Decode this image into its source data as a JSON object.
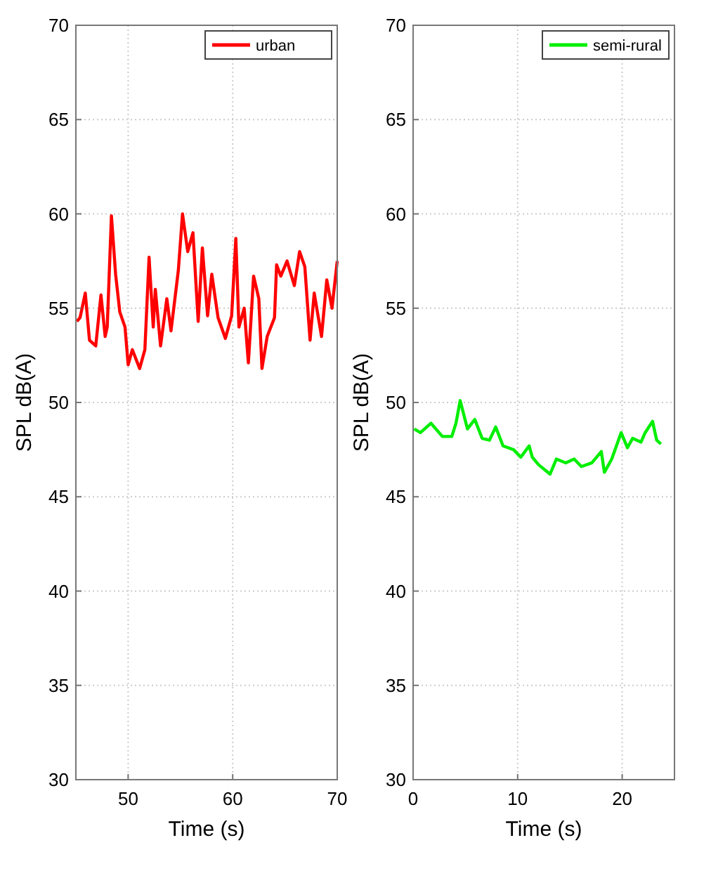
{
  "chart_data": [
    {
      "type": "line",
      "xlabel": "Time (s)",
      "ylabel": "SPL dB(A)",
      "xlim": [
        45,
        70
      ],
      "ylim": [
        30,
        70
      ],
      "xticks": [
        50,
        60,
        70
      ],
      "yticks": [
        30,
        35,
        40,
        45,
        50,
        55,
        60,
        65,
        70
      ],
      "grid": true,
      "legend": "top right",
      "x": [
        45.1,
        45.4,
        45.9,
        46.3,
        46.9,
        47.4,
        47.8,
        48.0,
        48.4,
        48.8,
        49.2,
        49.7,
        50.0,
        50.4,
        51.1,
        51.6,
        52.0,
        52.4,
        52.6,
        53.1,
        53.7,
        54.1,
        54.8,
        55.2,
        55.7,
        56.2,
        56.7,
        57.1,
        57.6,
        58.0,
        58.6,
        59.3,
        59.9,
        60.3,
        60.6,
        61.1,
        61.5,
        62.0,
        62.5,
        62.8,
        63.3,
        64.0,
        64.2,
        64.6,
        65.2,
        65.9,
        66.4,
        66.9,
        67.4,
        67.8,
        68.5,
        69.0,
        69.5,
        70.0
      ],
      "series": [
        {
          "name": "urban",
          "color": "#ff0000",
          "values": [
            54.3,
            54.5,
            55.8,
            53.3,
            53.0,
            55.7,
            53.5,
            54.0,
            59.9,
            56.8,
            54.8,
            54.0,
            52.0,
            52.8,
            51.8,
            52.8,
            57.7,
            54.0,
            56.0,
            53.0,
            55.5,
            53.8,
            57.0,
            60.0,
            58.0,
            59.0,
            54.3,
            58.2,
            54.6,
            56.8,
            54.5,
            53.4,
            54.6,
            58.7,
            54.0,
            55.0,
            52.1,
            56.7,
            55.5,
            51.8,
            53.5,
            54.5,
            57.3,
            56.7,
            57.5,
            56.2,
            58.0,
            57.2,
            53.3,
            55.8,
            53.5,
            56.5,
            55.0,
            57.5
          ]
        }
      ]
    },
    {
      "type": "line",
      "xlabel": "Time (s)",
      "ylabel": "SPL dB(A)",
      "xlim": [
        0,
        25
      ],
      "ylim": [
        30,
        70
      ],
      "xticks": [
        0,
        10,
        20
      ],
      "yticks": [
        30,
        35,
        40,
        45,
        50,
        55,
        60,
        65,
        70
      ],
      "grid": true,
      "legend": "top right",
      "x": [
        0.1,
        0.7,
        1.7,
        2.8,
        3.7,
        4.1,
        4.5,
        5.2,
        5.9,
        6.6,
        7.3,
        7.9,
        8.6,
        9.6,
        10.3,
        11.1,
        11.4,
        12.0,
        13.1,
        13.7,
        14.6,
        15.4,
        16.1,
        17.1,
        18.0,
        18.3,
        19.0,
        19.9,
        20.5,
        21.0,
        21.8,
        22.2,
        22.9,
        23.3,
        23.7
      ],
      "series": [
        {
          "name": "semi-rural",
          "color": "#00ee00",
          "values": [
            48.6,
            48.4,
            48.9,
            48.2,
            48.2,
            48.9,
            50.1,
            48.6,
            49.1,
            48.1,
            48.0,
            48.7,
            47.7,
            47.5,
            47.1,
            47.7,
            47.1,
            46.7,
            46.2,
            47.0,
            46.8,
            47.0,
            46.6,
            46.8,
            47.4,
            46.3,
            47.0,
            48.4,
            47.6,
            48.1,
            47.9,
            48.4,
            49.0,
            48.0,
            47.8
          ]
        }
      ]
    }
  ]
}
